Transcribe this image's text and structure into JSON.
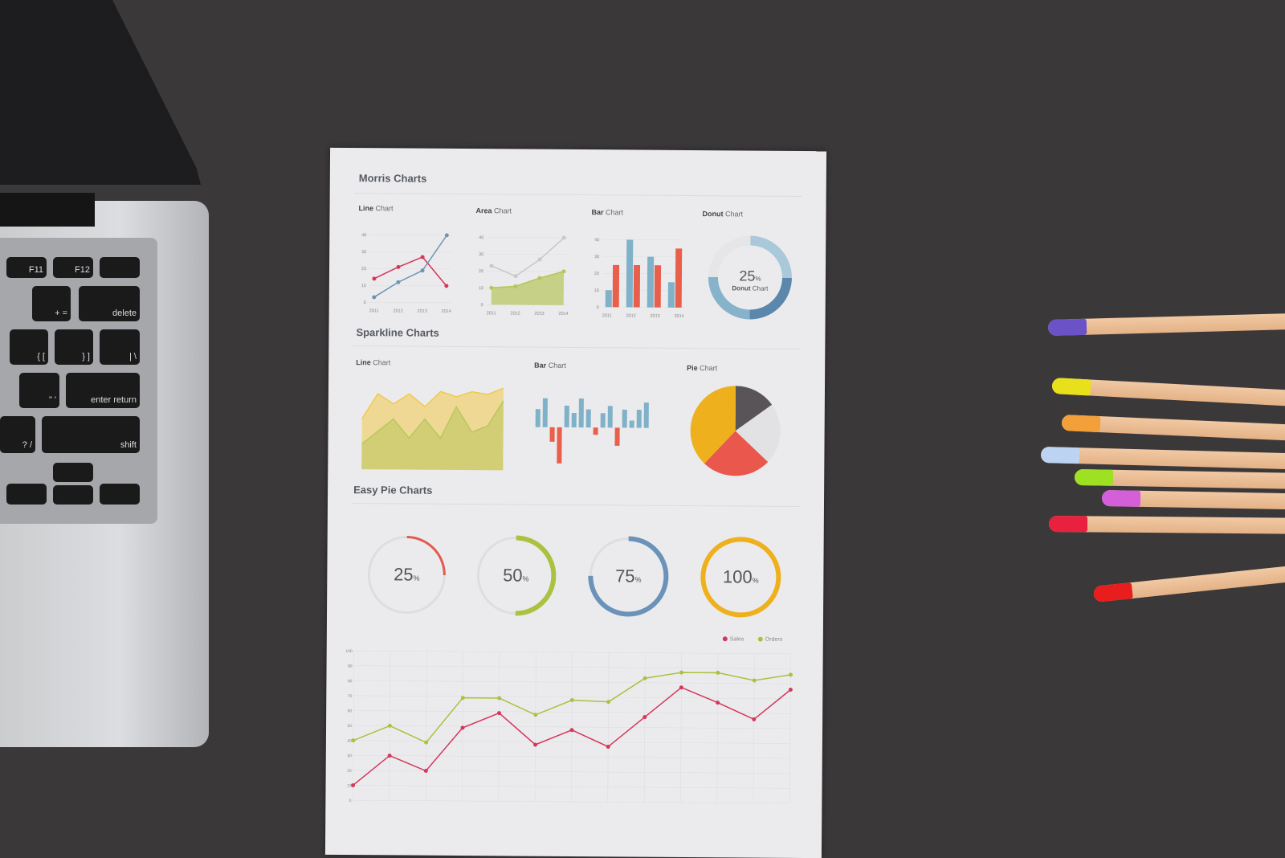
{
  "keyboard": {
    "keys": [
      "F11",
      "F12",
      "delete",
      "enter return",
      "shift",
      "{ [",
      "} ]",
      "| \\",
      "+ =",
      "\" '",
      "? /"
    ]
  },
  "paper": {
    "morris": {
      "title": "Morris Charts",
      "line": {
        "bold": "Line",
        "rest": " Chart",
        "x": [
          "2011",
          "2012",
          "2013",
          "2014"
        ],
        "yticks": [
          "0",
          "10",
          "20",
          "30",
          "40"
        ],
        "series": [
          {
            "color": "#d6365a",
            "values": [
              14,
              21,
              27,
              10
            ]
          },
          {
            "color": "#6d93b5",
            "values": [
              3,
              12,
              19,
              40
            ]
          }
        ]
      },
      "area": {
        "bold": "Area",
        "rest": " Chart",
        "x": [
          "2011",
          "2012",
          "2013",
          "2014"
        ],
        "yticks": [
          "0",
          "10",
          "20",
          "30",
          "40"
        ],
        "series": [
          {
            "color": "#c8c8c8",
            "values": [
              23,
              17,
              27,
              40
            ]
          },
          {
            "color": "#b7c45a",
            "values": [
              10,
              11,
              16,
              20
            ],
            "fill": true
          }
        ]
      },
      "bar": {
        "bold": "Bar",
        "rest": " Chart",
        "x": [
          "2011",
          "2012",
          "2013",
          "2014"
        ],
        "yticks": [
          "0",
          "10",
          "20",
          "30",
          "40"
        ],
        "series": [
          {
            "color": "#7fb1c8",
            "values": [
              10,
              40,
              30,
              15
            ]
          },
          {
            "color": "#e8604b",
            "values": [
              25,
              25,
              25,
              35
            ]
          }
        ]
      },
      "donut": {
        "bold": "Donut",
        "rest": " Chart",
        "value": "25",
        "unit": "%",
        "label_bold": "Donut",
        "label_rest": " Chart",
        "segments": [
          {
            "value": 25,
            "color": "#a9c9da"
          },
          {
            "value": 25,
            "color": "#5b87ac"
          },
          {
            "value": 25,
            "color": "#86b3cb"
          },
          {
            "value": 25,
            "color": "#e6e6e8"
          }
        ]
      }
    },
    "sparkline": {
      "title": "Sparkline Charts",
      "line": {
        "bold": "Line",
        "rest": " Chart",
        "series": [
          {
            "color": "#f1c94b",
            "values": [
              40,
              60,
              52,
              60,
              50,
              62,
              58,
              62,
              60,
              65
            ]
          },
          {
            "color": "#b9c75d",
            "values": [
              20,
              30,
              40,
              25,
              40,
              25,
              50,
              30,
              35,
              55
            ]
          }
        ]
      },
      "bar": {
        "bold": "Bar",
        "rest": " Chart",
        "values": [
          5,
          8,
          -4,
          -10,
          6,
          4,
          8,
          5,
          -2,
          4,
          6,
          -5,
          5,
          2,
          5,
          7
        ]
      },
      "pie": {
        "bold": "Pie",
        "rest": " Chart",
        "slices": [
          {
            "value": 15,
            "color": "#585457"
          },
          {
            "value": 22,
            "color": "#e2e2e4"
          },
          {
            "value": 25,
            "color": "#e9574d"
          },
          {
            "value": 38,
            "color": "#eeb01c"
          }
        ]
      }
    },
    "easypie": {
      "title": "Easy Pie Charts",
      "items": [
        {
          "value": 25,
          "label": "25",
          "unit": "%",
          "color": "#e25a50"
        },
        {
          "value": 50,
          "label": "50",
          "unit": "%",
          "color": "#a9c23f"
        },
        {
          "value": 75,
          "label": "75",
          "unit": "%",
          "color": "#6b92b8"
        },
        {
          "value": 100,
          "label": "100",
          "unit": "%",
          "color": "#eeb01c"
        }
      ]
    },
    "chart_data": {
      "type": "line",
      "yticks": [
        "0",
        "10",
        "20",
        "30",
        "40",
        "50",
        "60",
        "70",
        "80",
        "90",
        "100"
      ],
      "ylim": [
        0,
        100
      ],
      "grid": true,
      "legend": "top-right",
      "series": [
        {
          "name": "Sales",
          "color": "#d6365a",
          "values": [
            10,
            30,
            20,
            49,
            59,
            38,
            48,
            37,
            57,
            77,
            67,
            56,
            76
          ]
        },
        {
          "name": "Orders",
          "color": "#a9c23f",
          "values": [
            40,
            50,
            39,
            69,
            69,
            58,
            68,
            67,
            83,
            87,
            87,
            82,
            86
          ]
        }
      ]
    }
  },
  "pencils": [
    {
      "color": "#6b52c7"
    },
    {
      "color": "#e8e01a"
    },
    {
      "color": "#f3a03b"
    },
    {
      "color": "#bcd4f2"
    },
    {
      "color": "#9ee022"
    },
    {
      "color": "#d45fd8"
    },
    {
      "color": "#e8213f"
    },
    {
      "color": "#e81d1d"
    }
  ]
}
